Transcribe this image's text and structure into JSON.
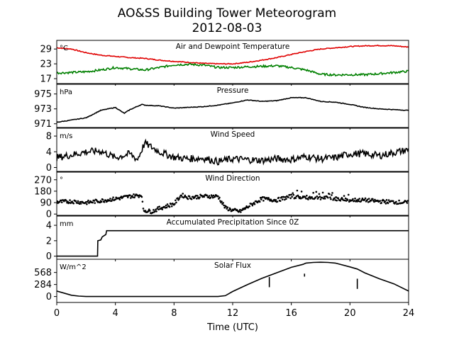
{
  "title_line1": "AO&SS Building Tower Meteorogram",
  "title_line2": "2012-08-03",
  "xlabel": "Time (UTC)",
  "x_ticks": [
    "0",
    "4",
    "8",
    "12",
    "16",
    "20",
    "24"
  ],
  "chart_data": [
    {
      "type": "line",
      "title": "Air and Dewpoint Temperature",
      "unit": "°C",
      "ylim": [
        15,
        32.5
      ],
      "y_ticks": [
        17,
        23,
        29
      ],
      "x_range": [
        0,
        24
      ],
      "series": [
        {
          "color": "#e00000",
          "x": [
            0,
            1,
            2,
            3,
            4,
            5,
            6,
            7,
            8,
            9,
            10,
            11,
            12,
            13,
            14,
            15,
            16,
            17,
            18,
            19,
            20,
            21,
            22,
            23,
            24
          ],
          "values": [
            29.5,
            29,
            27.5,
            26.5,
            26,
            25.5,
            25.2,
            24.5,
            24,
            23.6,
            23.2,
            23,
            23,
            23.6,
            24.5,
            25.5,
            26.8,
            28,
            29,
            29.5,
            30,
            30.3,
            30.4,
            30.3,
            29.8
          ]
        },
        {
          "color": "#008000",
          "x": [
            0,
            1,
            2,
            3,
            4,
            5,
            6,
            7,
            8,
            9,
            10,
            11,
            12,
            13,
            14,
            15,
            16,
            17,
            18,
            19,
            20,
            21,
            22,
            23,
            24
          ],
          "values": [
            19.3,
            19.5,
            19.8,
            20.5,
            21.5,
            21,
            20.5,
            21.5,
            22.6,
            22.8,
            22.5,
            21.5,
            21.5,
            21.8,
            22,
            22.2,
            21.5,
            20.5,
            18.8,
            18.5,
            18.6,
            18.6,
            19,
            19.5,
            20
          ]
        }
      ]
    },
    {
      "type": "line",
      "title": "Pressure",
      "unit": "hPa",
      "ylim": [
        970.5,
        976.3
      ],
      "y_ticks": [
        971,
        973,
        975
      ],
      "x_range": [
        0,
        24
      ],
      "series": [
        {
          "color": "#000000",
          "x": [
            0,
            1,
            2,
            3,
            4,
            4.6,
            5,
            5.8,
            6,
            7,
            8,
            9,
            10,
            11,
            12,
            13,
            14,
            15,
            16,
            17,
            18,
            19,
            20,
            21,
            22,
            23,
            24
          ],
          "values": [
            971.2,
            971.5,
            971.8,
            972.8,
            973.2,
            972.4,
            972.9,
            973.6,
            973.5,
            973.4,
            973.1,
            973.2,
            973.3,
            973.5,
            973.8,
            974.2,
            974.0,
            974.1,
            974.5,
            974.5,
            974.0,
            973.9,
            973.6,
            973.2,
            973.0,
            972.9,
            972.8
          ]
        }
      ]
    },
    {
      "type": "line",
      "title": "Wind Speed",
      "unit": "m/s",
      "ylim": [
        -1,
        10
      ],
      "y_ticks": [
        0,
        4,
        8
      ],
      "x_range": [
        0,
        24
      ],
      "series": [
        {
          "color": "#000000",
          "x": [
            0,
            1,
            2,
            3,
            4,
            5,
            5.5,
            6,
            7,
            8,
            9,
            10,
            11,
            12,
            13,
            14,
            15,
            16,
            17,
            18,
            19,
            20,
            21,
            22,
            23,
            24
          ],
          "values": [
            2.5,
            3.2,
            4,
            4.2,
            2.5,
            3.5,
            2,
            6.2,
            4,
            2.6,
            2.2,
            2.4,
            1.5,
            2.2,
            2,
            1.8,
            2.2,
            2,
            2.8,
            2.2,
            2.5,
            3.5,
            3.5,
            3,
            3.8,
            4.5
          ]
        }
      ]
    },
    {
      "type": "scatter",
      "title": "Wind Direction",
      "unit": "°",
      "ylim": [
        -10,
        330
      ],
      "y_ticks": [
        0,
        90,
        180,
        270
      ],
      "x_range": [
        0,
        24
      ],
      "series": [
        {
          "color": "#000000",
          "x": [
            0,
            1,
            2,
            3,
            4,
            5,
            5.8,
            5.9,
            6.5,
            7,
            8,
            8.5,
            9,
            10,
            11,
            11.5,
            12,
            12.5,
            13,
            13.5,
            14,
            15,
            16,
            17,
            18,
            19,
            20,
            21,
            22,
            23,
            24
          ],
          "values": [
            95,
            100,
            90,
            105,
            120,
            140,
            150,
            30,
            20,
            45,
            80,
            150,
            130,
            140,
            140,
            50,
            30,
            20,
            55,
            90,
            120,
            110,
            140,
            130,
            130,
            120,
            110,
            110,
            100,
            95,
            90
          ]
        }
      ]
    },
    {
      "type": "line",
      "title": "Accumulated Precipitation Since 0Z",
      "unit": "mm",
      "ylim": [
        -0.4,
        5.2
      ],
      "y_ticks": [
        0,
        2,
        4
      ],
      "x_range": [
        0,
        24
      ],
      "series": [
        {
          "color": "#000000",
          "x": [
            0,
            2.78,
            2.8,
            3.0,
            3.1,
            3.35,
            3.4,
            24
          ],
          "values": [
            0,
            0,
            2.0,
            2.1,
            2.5,
            2.8,
            3.3,
            3.3
          ]
        }
      ]
    },
    {
      "type": "line",
      "title": "Solar Flux",
      "unit": "W/m^2",
      "ylim": [
        -140,
        880
      ],
      "y_ticks": [
        0,
        284,
        568
      ],
      "x_range": [
        0,
        24
      ],
      "series": [
        {
          "color": "#000000",
          "x": [
            0,
            0.5,
            1,
            1.5,
            2,
            11,
            11.5,
            12,
            13,
            14,
            15,
            16,
            16.8,
            17,
            17.5,
            18,
            18.5,
            19,
            20,
            20.5,
            21,
            22,
            23,
            24
          ],
          "values": [
            130,
            80,
            30,
            10,
            0,
            0,
            20,
            120,
            280,
            430,
            560,
            690,
            760,
            790,
            805,
            810,
            805,
            790,
            700,
            650,
            560,
            420,
            300,
            130
          ]
        }
      ]
    }
  ]
}
